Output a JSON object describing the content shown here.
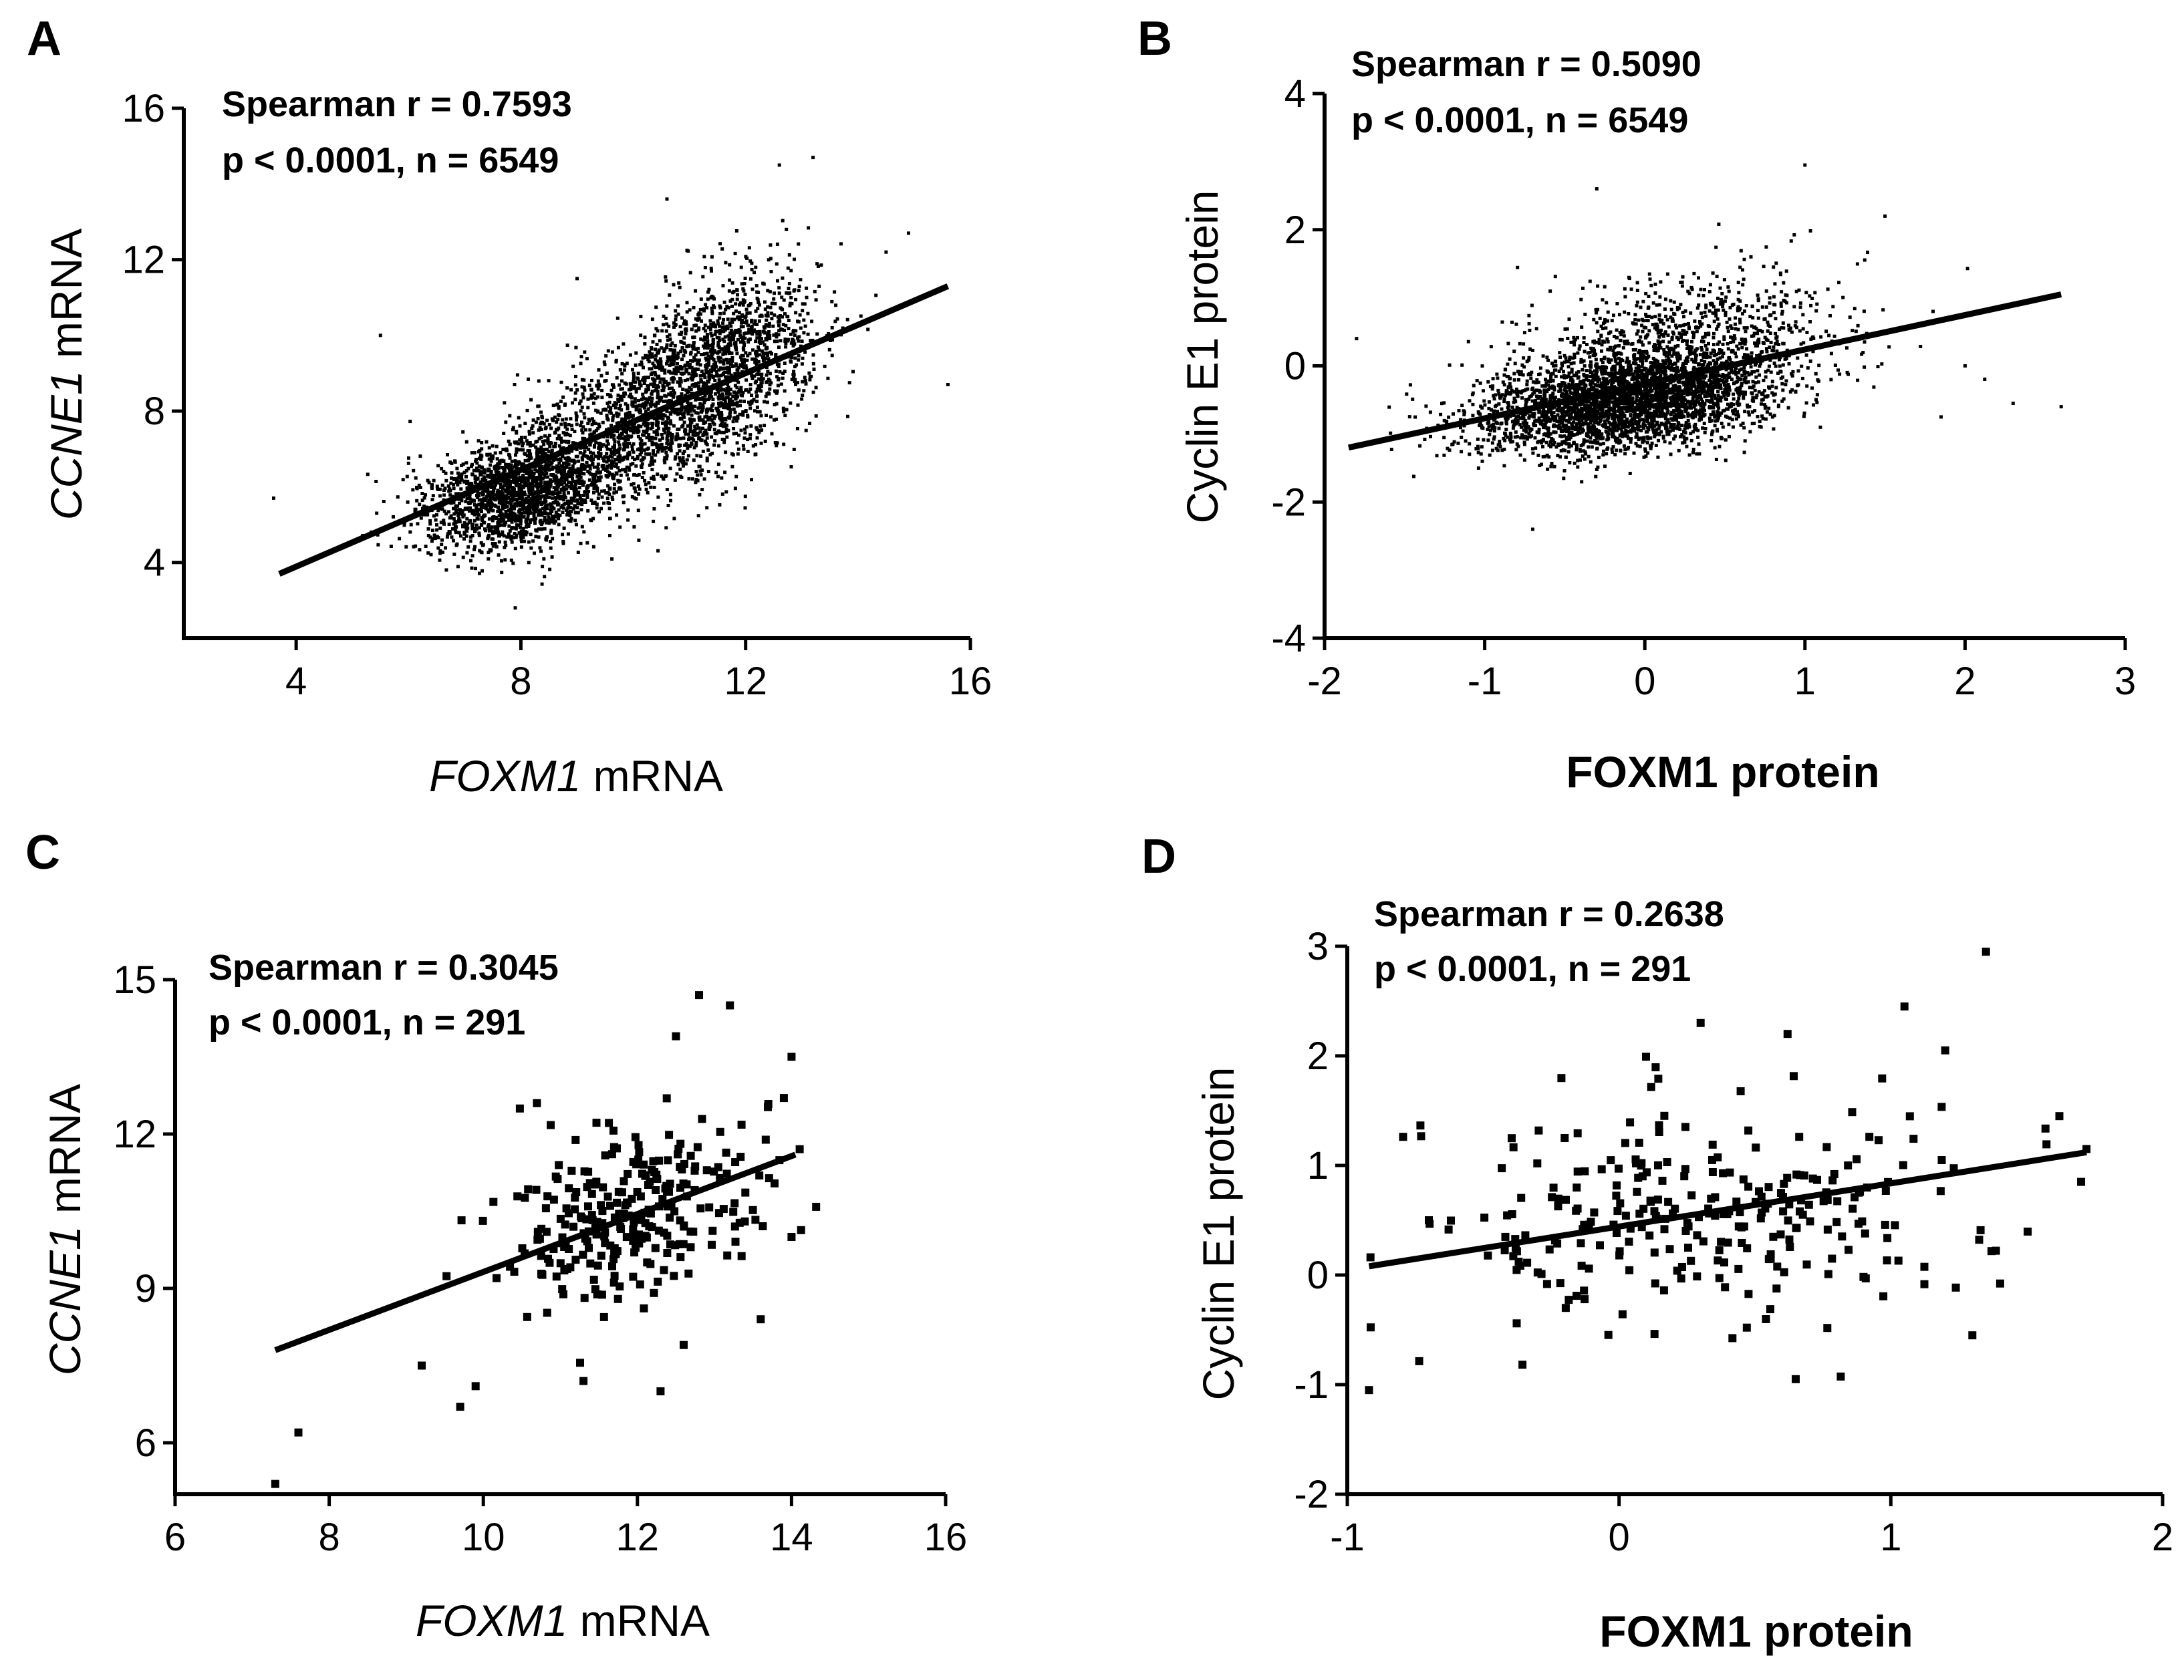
{
  "chart_data": [
    {
      "panel": "A",
      "type": "scatter",
      "stats": {
        "line1": "Spearman r = 0.7593",
        "line2": "p < 0.0001, n = 6549"
      },
      "xlabel": {
        "italic": "FOXM1",
        "plain": " mRNA"
      },
      "ylabel": {
        "italic": "CCNE1",
        "plain": " mRNA"
      },
      "xlim": [
        2,
        16
      ],
      "ylim": [
        2,
        16
      ],
      "xticks": [
        4,
        8,
        12,
        16
      ],
      "yticks": [
        4,
        8,
        12,
        16
      ],
      "fit": {
        "x": [
          3.7,
          15.6
        ],
        "y": [
          3.7,
          11.3
        ]
      },
      "n": 6549,
      "cloud": [
        {
          "cx": 7.9,
          "cy": 5.8,
          "sx": 0.85,
          "sy": 0.75,
          "rho": 0.3,
          "count": 1700
        },
        {
          "cx": 11.4,
          "cy": 8.9,
          "sx": 0.9,
          "sy": 1.3,
          "rho": 0.45,
          "count": 1800
        },
        {
          "cx": 9.6,
          "cy": 7.3,
          "sx": 1.1,
          "sy": 1.1,
          "rho": 0.5,
          "count": 900
        }
      ],
      "outliers": [
        [
          3.6,
          5.7
        ],
        [
          5.5,
          10.0
        ],
        [
          14.9,
          12.7
        ],
        [
          15.6,
          8.7
        ],
        [
          13.2,
          14.7
        ],
        [
          12.6,
          14.5
        ],
        [
          7.9,
          2.8
        ],
        [
          14.5,
          12.2
        ],
        [
          10.6,
          13.6
        ],
        [
          9.0,
          11.5
        ]
      ]
    },
    {
      "panel": "B",
      "type": "scatter",
      "stats": {
        "line1": "Spearman r = 0.5090",
        "line2": "p < 0.0001, n = 6549"
      },
      "xlabel": {
        "italic": "",
        "plain": "FOXM1 protein"
      },
      "ylabel": {
        "italic": "",
        "plain": "Cyclin E1 protein"
      },
      "xlim": [
        -2,
        3
      ],
      "ylim": [
        -4,
        4
      ],
      "xticks": [
        -2,
        -1,
        0,
        1,
        2,
        3
      ],
      "yticks": [
        -4,
        -2,
        0,
        2,
        4
      ],
      "fit": {
        "x": [
          -1.85,
          2.6
        ],
        "y": [
          -1.2,
          1.05
        ]
      },
      "n": 6549,
      "cloud": [
        {
          "cx": -0.15,
          "cy": -0.55,
          "sx": 0.45,
          "sy": 0.35,
          "rho": 0.35,
          "count": 2800
        },
        {
          "cx": 0.2,
          "cy": 0.2,
          "sx": 0.5,
          "sy": 0.55,
          "rho": 0.3,
          "count": 1200
        }
      ],
      "outliers": [
        [
          -1.8,
          0.4
        ],
        [
          2.6,
          -0.6
        ],
        [
          2.3,
          -0.55
        ],
        [
          1.85,
          -0.75
        ],
        [
          1.0,
          2.95
        ],
        [
          -0.3,
          2.6
        ],
        [
          1.5,
          2.2
        ],
        [
          2.0,
          0.0
        ],
        [
          -0.7,
          -2.4
        ],
        [
          1.8,
          0.8
        ]
      ]
    },
    {
      "panel": "C",
      "type": "scatter",
      "stats": {
        "line1": "Spearman r = 0.3045",
        "line2": "p < 0.0001, n = 291"
      },
      "xlabel": {
        "italic": "FOXM1",
        "plain": " mRNA"
      },
      "ylabel": {
        "italic": "CCNE1",
        "plain": " mRNA"
      },
      "xlim": [
        6,
        16
      ],
      "ylim": [
        5,
        15
      ],
      "xticks": [
        6,
        8,
        10,
        12,
        14,
        16
      ],
      "yticks": [
        6,
        9,
        12,
        15
      ],
      "fit": {
        "x": [
          7.3,
          14.05
        ],
        "y": [
          7.8,
          11.6
        ]
      },
      "n": 291,
      "cloud": [
        {
          "cx": 11.9,
          "cy": 10.5,
          "sx": 0.85,
          "sy": 0.95,
          "rho": 0.3,
          "count": 276
        }
      ],
      "outliers": [
        [
          7.3,
          5.2
        ],
        [
          7.6,
          6.2
        ],
        [
          9.2,
          7.5
        ],
        [
          9.7,
          6.7
        ],
        [
          12.8,
          14.7
        ],
        [
          13.2,
          14.5
        ],
        [
          14.0,
          13.5
        ],
        [
          12.5,
          13.9
        ],
        [
          14.0,
          10.0
        ],
        [
          13.6,
          8.4
        ],
        [
          12.6,
          7.9
        ],
        [
          11.3,
          7.2
        ],
        [
          12.3,
          7.0
        ],
        [
          9.9,
          7.1
        ],
        [
          13.9,
          12.7
        ]
      ]
    },
    {
      "panel": "D",
      "type": "scatter",
      "stats": {
        "line1": "Spearman r = 0.2638",
        "line2": "p < 0.0001, n = 291"
      },
      "xlabel": {
        "italic": "",
        "plain": "FOXM1 protein"
      },
      "ylabel": {
        "italic": "",
        "plain": "Cyclin E1 protein"
      },
      "xlim": [
        -1,
        2
      ],
      "ylim": [
        -2,
        3
      ],
      "xticks": [
        -1,
        0,
        1,
        2
      ],
      "yticks": [
        -2,
        -1,
        0,
        1,
        2,
        3
      ],
      "fit": {
        "x": [
          -0.92,
          1.72
        ],
        "y": [
          0.08,
          1.12
        ]
      },
      "n": 291,
      "cloud": [
        {
          "cx": 0.35,
          "cy": 0.55,
          "sx": 0.5,
          "sy": 0.55,
          "rho": 0.15,
          "count": 278
        }
      ],
      "outliers": [
        [
          -0.92,
          -1.05
        ],
        [
          1.35,
          2.95
        ],
        [
          1.05,
          2.45
        ],
        [
          0.62,
          2.2
        ],
        [
          0.3,
          2.3
        ],
        [
          1.2,
          2.05
        ],
        [
          1.62,
          1.45
        ],
        [
          1.72,
          1.15
        ],
        [
          1.7,
          0.85
        ],
        [
          -0.7,
          0.5
        ],
        [
          0.65,
          -0.95
        ],
        [
          -0.2,
          1.25
        ],
        [
          1.3,
          -0.55
        ]
      ]
    }
  ]
}
